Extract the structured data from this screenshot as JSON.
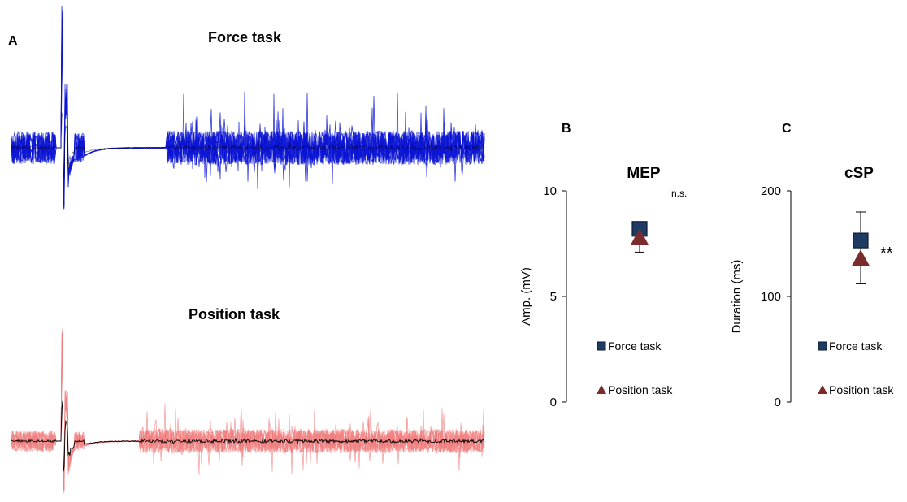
{
  "colors": {
    "force_trace": "#0a14d2",
    "position_trace": "#f07e7e",
    "mean_trace": "#000000",
    "force_marker": "#1f3b63",
    "position_marker": "#7a2c2c",
    "axis": "#000000"
  },
  "panels": {
    "a": {
      "letter": "A",
      "force_title": "Force task",
      "position_title": "Position task"
    },
    "b": {
      "letter": "B"
    },
    "c": {
      "letter": "C"
    }
  },
  "chart_data": [
    {
      "type": "scatter",
      "title": "MEP",
      "ylabel": "Amp. (mV)",
      "ylim": [
        0,
        10
      ],
      "yticks": [
        "0",
        "5",
        "10"
      ],
      "significance": "n.s.",
      "series": [
        {
          "name": "Force task",
          "marker": "square",
          "mean": 8.2,
          "error_low": 7.9,
          "error_high": 8.5
        },
        {
          "name": "Position task",
          "marker": "triangle",
          "mean": 7.8,
          "error_low": 7.1,
          "error_high": 8.3
        }
      ]
    },
    {
      "type": "scatter",
      "title": "cSP",
      "ylabel": "Duration (ms)",
      "ylim": [
        0,
        200
      ],
      "yticks": [
        "0",
        "100",
        "200"
      ],
      "significance": "**",
      "series": [
        {
          "name": "Force task",
          "marker": "square",
          "mean": 153,
          "error_low": 135,
          "error_high": 180
        },
        {
          "name": "Position task",
          "marker": "triangle",
          "mean": 136,
          "error_low": 112,
          "error_high": 150
        }
      ]
    }
  ]
}
